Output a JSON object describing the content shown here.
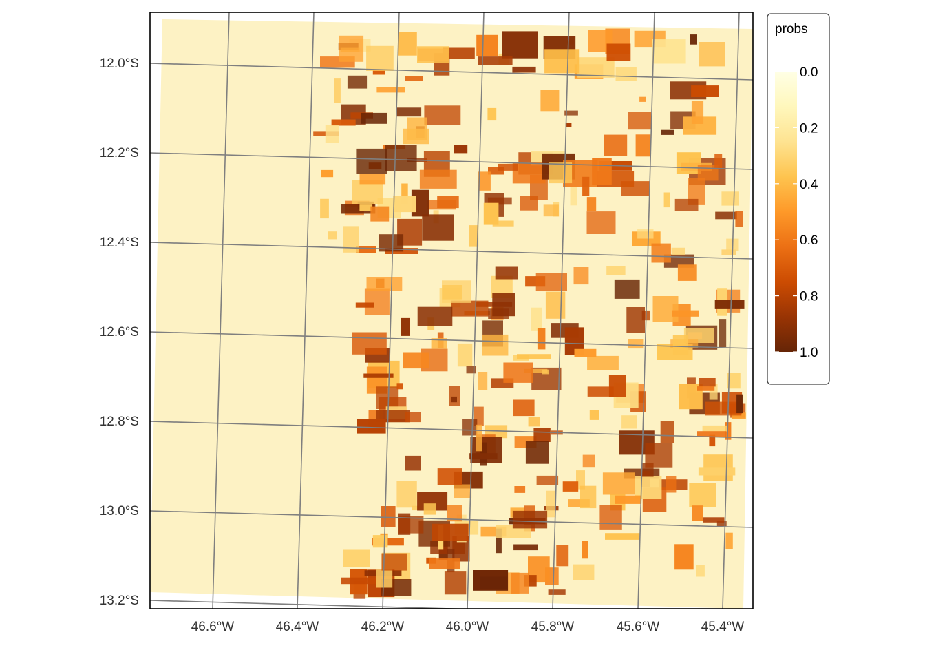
{
  "map": {
    "legend_title": "probs",
    "legend_min": 0.0,
    "legend_max": 1.0,
    "legend_labels": [
      "0.0",
      "0.2",
      "0.4",
      "0.6",
      "0.8",
      "1.0"
    ],
    "color_scale": [
      "#ffffe5",
      "#fff7bc",
      "#fee391",
      "#fec44f",
      "#fe9929",
      "#ec7014",
      "#cc4c02",
      "#993404",
      "#662506"
    ],
    "lat_labels": [
      "12.0°S",
      "12.2°S",
      "12.4°S",
      "12.6°S",
      "12.8°S",
      "13.0°S",
      "13.2°S"
    ],
    "lon_labels": [
      "46.6°W",
      "46.4°W",
      "46.2°W",
      "46.0°W",
      "45.8°W",
      "45.6°W",
      "45.4°W"
    ],
    "graticule_color": "#7f7f7f",
    "grid": true,
    "legend_position": "right"
  }
}
